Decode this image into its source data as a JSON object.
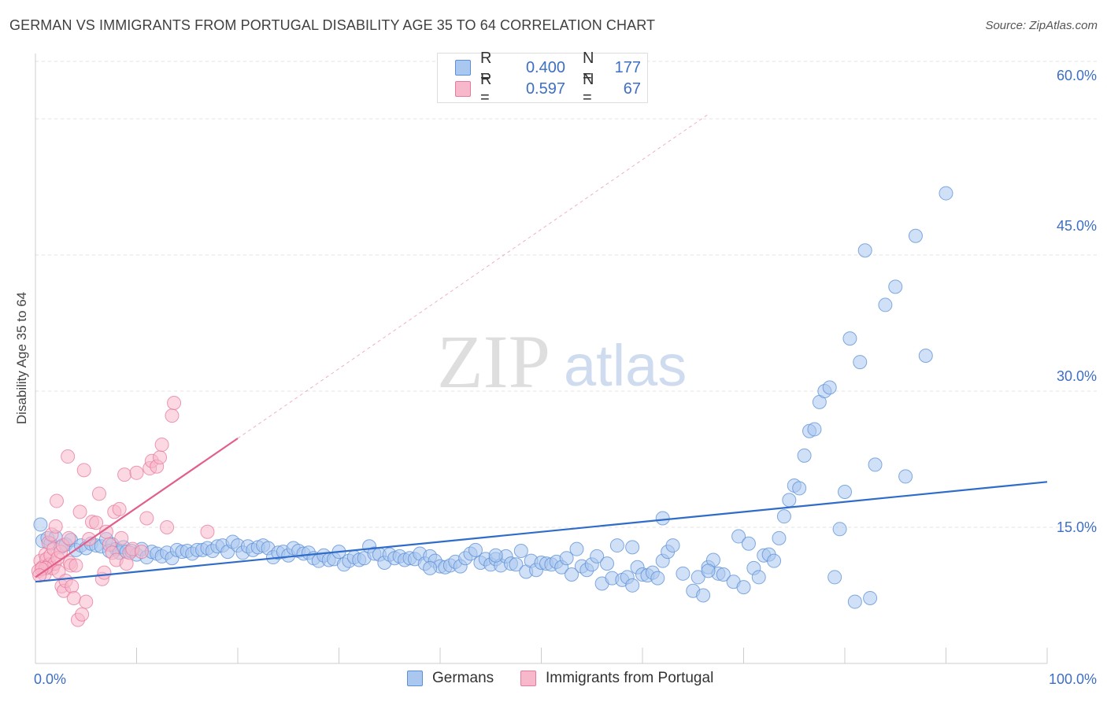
{
  "title": "GERMAN VS IMMIGRANTS FROM PORTUGAL DISABILITY AGE 35 TO 64 CORRELATION CHART",
  "source": "Source: ZipAtlas.com",
  "watermark": {
    "zip": "ZIP",
    "atlas": "atlas"
  },
  "legend": {
    "germans": {
      "r_label": "R =",
      "r_value": "0.400",
      "n_label": "N =",
      "n_value": "177",
      "color": "#a9c7ef",
      "stroke": "#5b8fd6"
    },
    "portugal": {
      "r_label": "R =",
      "r_value": "0.597",
      "n_label": "N =",
      "n_value": "67",
      "color": "#f7b8cb",
      "stroke": "#e67a9d"
    }
  },
  "bottom_legend": {
    "germans": "Germans",
    "portugal": "Immigrants from Portugal"
  },
  "axis": {
    "x_min_label": "0.0%",
    "x_max_label": "100.0%",
    "y_tick_labels": [
      "60.0%",
      "45.0%",
      "30.0%",
      "15.0%"
    ],
    "ylabel": "Disability Age 35 to 64"
  },
  "chart_data": {
    "type": "scatter",
    "title": "GERMAN VS IMMIGRANTS FROM PORTUGAL DISABILITY AGE 35 TO 64 CORRELATION CHART",
    "xlabel": "",
    "ylabel": "Disability Age 35 to 64",
    "xlim": [
      0,
      100
    ],
    "ylim": [
      0,
      62
    ],
    "y_ticks": [
      15,
      30,
      45,
      60
    ],
    "grid": true,
    "legend_position": "top-center",
    "series": [
      {
        "name": "Germans",
        "color": "#5b8fd6",
        "fill": "#a9c7ef",
        "r": 0.4,
        "n": 177,
        "trend": {
          "x": [
            0,
            100
          ],
          "y": [
            9.0,
            20.0
          ],
          "style": "solid"
        },
        "points": [
          [
            0.5,
            15.3
          ],
          [
            0.7,
            13.5
          ],
          [
            1.2,
            13.8
          ],
          [
            1.5,
            13.2
          ],
          [
            2.0,
            13.9
          ],
          [
            2.5,
            12.8
          ],
          [
            3.0,
            13.1
          ],
          [
            3.5,
            13.6
          ],
          [
            4.0,
            12.5
          ],
          [
            4.5,
            13.0
          ],
          [
            5.0,
            12.7
          ],
          [
            5.5,
            13.2
          ],
          [
            6.0,
            13.0
          ],
          [
            6.5,
            12.9
          ],
          [
            7.0,
            13.7
          ],
          [
            7.3,
            12.4
          ],
          [
            7.6,
            13.1
          ],
          [
            8.0,
            12.6
          ],
          [
            8.3,
            12.2
          ],
          [
            8.7,
            12.8
          ],
          [
            9.0,
            12.3
          ],
          [
            9.5,
            12.4
          ],
          [
            10.0,
            12.0
          ],
          [
            10.5,
            12.6
          ],
          [
            11.0,
            11.7
          ],
          [
            11.5,
            12.3
          ],
          [
            12.0,
            12.1
          ],
          [
            12.5,
            11.8
          ],
          [
            13.0,
            12.2
          ],
          [
            13.5,
            11.6
          ],
          [
            14.0,
            12.5
          ],
          [
            14.5,
            12.3
          ],
          [
            15.0,
            12.4
          ],
          [
            15.5,
            12.1
          ],
          [
            16.0,
            12.5
          ],
          [
            16.5,
            12.5
          ],
          [
            17.0,
            12.7
          ],
          [
            17.5,
            12.4
          ],
          [
            18.0,
            12.9
          ],
          [
            18.5,
            13.0
          ],
          [
            19.0,
            12.3
          ],
          [
            19.5,
            13.4
          ],
          [
            20.0,
            13.0
          ],
          [
            20.5,
            12.2
          ],
          [
            21.0,
            12.9
          ],
          [
            21.5,
            12.5
          ],
          [
            22.0,
            12.8
          ],
          [
            22.5,
            13.0
          ],
          [
            23.0,
            12.7
          ],
          [
            23.5,
            11.7
          ],
          [
            24.0,
            12.2
          ],
          [
            24.5,
            12.3
          ],
          [
            25.0,
            11.9
          ],
          [
            25.5,
            12.7
          ],
          [
            26.0,
            12.4
          ],
          [
            26.5,
            12.1
          ],
          [
            27.0,
            12.2
          ],
          [
            27.5,
            11.6
          ],
          [
            28.0,
            11.3
          ],
          [
            28.5,
            11.9
          ],
          [
            29.0,
            11.4
          ],
          [
            29.5,
            11.5
          ],
          [
            30.0,
            12.3
          ],
          [
            30.5,
            10.9
          ],
          [
            31.0,
            11.3
          ],
          [
            31.5,
            11.7
          ],
          [
            32.0,
            11.4
          ],
          [
            32.5,
            11.6
          ],
          [
            33.0,
            12.9
          ],
          [
            33.5,
            12.1
          ],
          [
            34.0,
            12.0
          ],
          [
            34.5,
            11.1
          ],
          [
            35.0,
            12.0
          ],
          [
            35.5,
            11.6
          ],
          [
            36.0,
            11.8
          ],
          [
            36.5,
            11.4
          ],
          [
            37.0,
            11.6
          ],
          [
            37.5,
            11.5
          ],
          [
            38.0,
            12.1
          ],
          [
            38.5,
            11.0
          ],
          [
            39.0,
            11.8
          ],
          [
            39.5,
            11.3
          ],
          [
            40.0,
            10.7
          ],
          [
            40.5,
            10.6
          ],
          [
            41.0,
            10.8
          ],
          [
            41.5,
            11.2
          ],
          [
            42.0,
            10.7
          ],
          [
            42.5,
            11.6
          ],
          [
            43.0,
            12.1
          ],
          [
            43.5,
            12.5
          ],
          [
            44.0,
            11.1
          ],
          [
            44.5,
            11.5
          ],
          [
            45.0,
            10.9
          ],
          [
            45.5,
            11.5
          ],
          [
            46.0,
            10.8
          ],
          [
            46.5,
            11.8
          ],
          [
            47.0,
            11.0
          ],
          [
            47.5,
            10.9
          ],
          [
            48.0,
            12.4
          ],
          [
            48.5,
            10.1
          ],
          [
            49.0,
            11.3
          ],
          [
            49.5,
            10.3
          ],
          [
            50.0,
            11.1
          ],
          [
            50.5,
            11.0
          ],
          [
            51.0,
            10.9
          ],
          [
            51.5,
            11.2
          ],
          [
            52.0,
            10.6
          ],
          [
            52.5,
            11.6
          ],
          [
            53.0,
            9.8
          ],
          [
            53.5,
            12.6
          ],
          [
            54.0,
            10.7
          ],
          [
            54.5,
            10.3
          ],
          [
            55.0,
            10.9
          ],
          [
            55.5,
            11.8
          ],
          [
            56.0,
            8.8
          ],
          [
            56.5,
            11.0
          ],
          [
            57.0,
            9.4
          ],
          [
            57.5,
            13.0
          ],
          [
            58.0,
            9.2
          ],
          [
            58.5,
            9.5
          ],
          [
            59.0,
            8.6
          ],
          [
            59.5,
            10.6
          ],
          [
            60.0,
            9.8
          ],
          [
            60.5,
            9.7
          ],
          [
            61.0,
            10.0
          ],
          [
            61.5,
            9.4
          ],
          [
            62.0,
            11.3
          ],
          [
            62.5,
            12.3
          ],
          [
            63.0,
            13.0
          ],
          [
            64.0,
            9.9
          ],
          [
            65.0,
            8.0
          ],
          [
            65.5,
            9.5
          ],
          [
            66.0,
            7.5
          ],
          [
            66.5,
            10.6
          ],
          [
            67.0,
            11.4
          ],
          [
            67.5,
            9.9
          ],
          [
            68.0,
            9.8
          ],
          [
            69.0,
            9.0
          ],
          [
            69.5,
            14.0
          ],
          [
            70.0,
            8.4
          ],
          [
            70.5,
            13.2
          ],
          [
            71.0,
            10.5
          ],
          [
            71.5,
            9.5
          ],
          [
            72.0,
            11.9
          ],
          [
            72.5,
            12.0
          ],
          [
            73.0,
            11.3
          ],
          [
            73.5,
            13.8
          ],
          [
            74.0,
            16.2
          ],
          [
            74.5,
            18.0
          ],
          [
            75.0,
            19.6
          ],
          [
            75.5,
            19.3
          ],
          [
            76.0,
            22.9
          ],
          [
            76.5,
            25.6
          ],
          [
            77.0,
            25.8
          ],
          [
            77.5,
            28.8
          ],
          [
            78.0,
            30.0
          ],
          [
            78.5,
            30.4
          ],
          [
            79.0,
            9.5
          ],
          [
            79.5,
            14.8
          ],
          [
            80.0,
            18.9
          ],
          [
            80.5,
            35.8
          ],
          [
            81.0,
            6.8
          ],
          [
            81.5,
            33.2
          ],
          [
            82.0,
            45.5
          ],
          [
            82.5,
            7.2
          ],
          [
            83.0,
            21.9
          ],
          [
            84.0,
            39.5
          ],
          [
            85.0,
            41.5
          ],
          [
            86.0,
            20.6
          ],
          [
            87.0,
            47.1
          ],
          [
            88.0,
            33.9
          ],
          [
            90.0,
            51.8
          ],
          [
            59.0,
            12.8
          ],
          [
            62.0,
            16.0
          ],
          [
            66.5,
            10.2
          ],
          [
            45.5,
            11.9
          ],
          [
            39.0,
            10.5
          ]
        ]
      },
      {
        "name": "Immigrants from Portugal",
        "color": "#e67a9d",
        "fill": "#f7b8cb",
        "r": 0.597,
        "n": 67,
        "trend": {
          "x": [
            0,
            20
          ],
          "y": [
            9.5,
            24.8
          ],
          "style": "solid",
          "extended_to": [
            66.5,
            60.5
          ],
          "extended_style": "dashed"
        },
        "points": [
          [
            0.3,
            10.2
          ],
          [
            0.5,
            11.3
          ],
          [
            0.7,
            10.6
          ],
          [
            0.9,
            9.8
          ],
          [
            1.0,
            12.0
          ],
          [
            1.1,
            11.5
          ],
          [
            1.2,
            10.7
          ],
          [
            1.3,
            13.3
          ],
          [
            1.4,
            10.9
          ],
          [
            1.5,
            11.9
          ],
          [
            1.6,
            14.2
          ],
          [
            1.7,
            10.5
          ],
          [
            1.8,
            12.6
          ],
          [
            1.9,
            11.0
          ],
          [
            2.0,
            15.1
          ],
          [
            2.1,
            17.9
          ],
          [
            2.2,
            11.6
          ],
          [
            2.3,
            10.1
          ],
          [
            2.5,
            12.3
          ],
          [
            2.6,
            8.5
          ],
          [
            2.7,
            13.0
          ],
          [
            2.8,
            8.0
          ],
          [
            3.0,
            9.1
          ],
          [
            3.2,
            22.8
          ],
          [
            3.3,
            13.8
          ],
          [
            3.4,
            11.1
          ],
          [
            3.5,
            10.8
          ],
          [
            3.6,
            8.5
          ],
          [
            3.8,
            7.2
          ],
          [
            4.0,
            10.8
          ],
          [
            4.2,
            4.8
          ],
          [
            4.4,
            16.7
          ],
          [
            4.6,
            5.4
          ],
          [
            4.8,
            21.3
          ],
          [
            5.0,
            6.8
          ],
          [
            5.3,
            13.7
          ],
          [
            5.6,
            15.6
          ],
          [
            6.0,
            15.5
          ],
          [
            6.3,
            18.7
          ],
          [
            6.6,
            9.3
          ],
          [
            6.8,
            10.0
          ],
          [
            7.0,
            14.5
          ],
          [
            7.3,
            13.1
          ],
          [
            7.6,
            12.2
          ],
          [
            7.8,
            16.7
          ],
          [
            8.0,
            11.4
          ],
          [
            8.3,
            17.0
          ],
          [
            8.5,
            13.8
          ],
          [
            8.8,
            20.8
          ],
          [
            9.0,
            11.0
          ],
          [
            9.3,
            12.2
          ],
          [
            9.6,
            12.6
          ],
          [
            10.0,
            21.0
          ],
          [
            10.5,
            12.3
          ],
          [
            11.0,
            16.0
          ],
          [
            11.3,
            21.5
          ],
          [
            11.5,
            22.3
          ],
          [
            12.0,
            21.7
          ],
          [
            12.3,
            22.7
          ],
          [
            12.5,
            24.1
          ],
          [
            13.0,
            15.0
          ],
          [
            13.5,
            27.3
          ],
          [
            13.7,
            28.7
          ],
          [
            17.0,
            14.5
          ],
          [
            1.0,
            10.5
          ],
          [
            0.6,
            10.4
          ],
          [
            0.4,
            9.7
          ]
        ]
      }
    ]
  }
}
